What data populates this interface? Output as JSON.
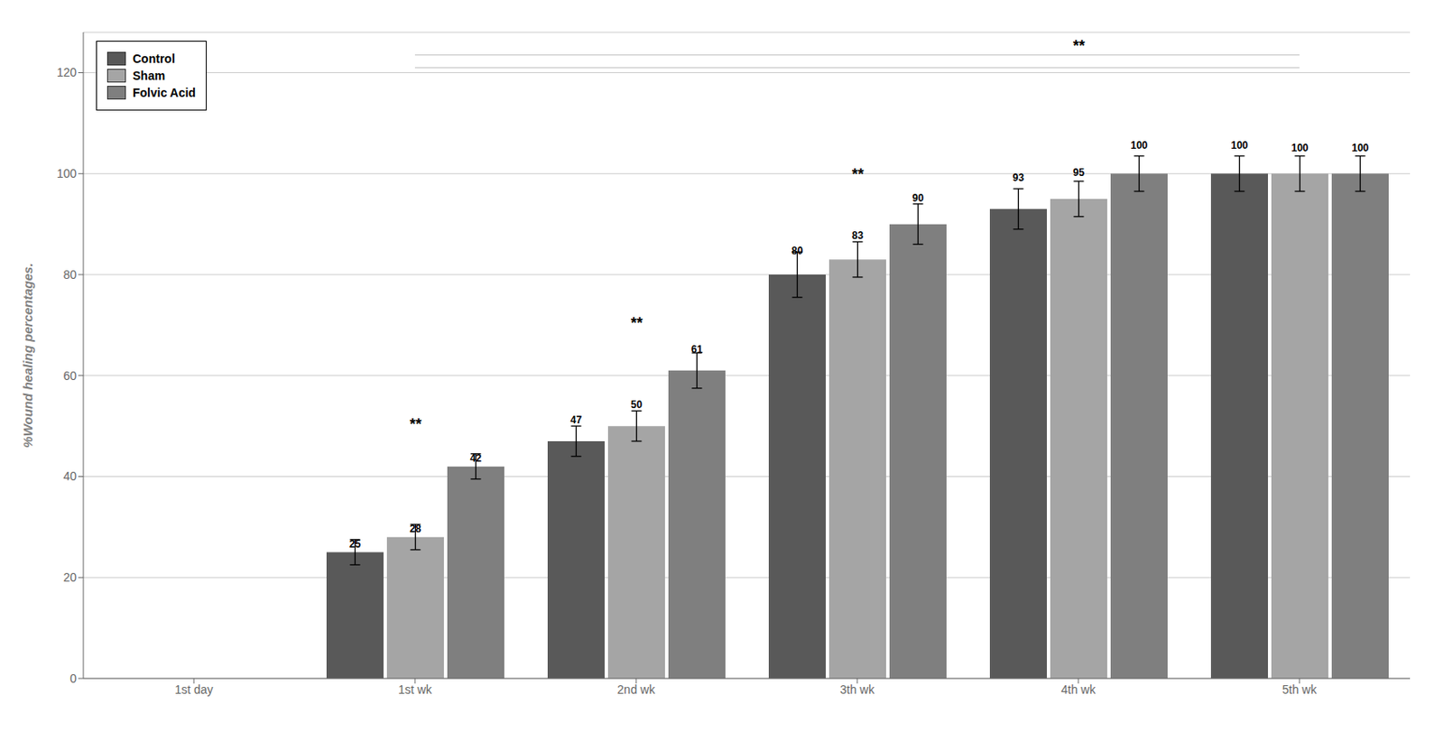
{
  "chart_data": {
    "type": "bar",
    "categories": [
      "1st day",
      "1st wk",
      "2nd wk",
      "3th wk",
      "4th wk",
      "5th wk"
    ],
    "series": [
      {
        "name": "Control",
        "color": "#595959",
        "values": [
          0,
          25,
          47,
          80,
          93,
          100
        ],
        "errors": [
          0,
          2.5,
          3.0,
          4.5,
          4.0,
          3.5
        ]
      },
      {
        "name": "Sham",
        "color": "#a5a5a5",
        "values": [
          0,
          28,
          50,
          83,
          95,
          100
        ],
        "errors": [
          0,
          2.5,
          3.0,
          3.5,
          3.5,
          3.5
        ]
      },
      {
        "name": "Folvic Acid",
        "color": "#7f7f7f",
        "values": [
          0,
          42,
          61,
          90,
          100,
          100
        ],
        "errors": [
          0,
          2.5,
          3.5,
          4.0,
          3.5,
          3.5
        ]
      }
    ],
    "ylabel": "%Wound healing percentages.",
    "ylim": [
      0,
      128
    ],
    "yticks": [
      0,
      20,
      40,
      60,
      80,
      100,
      120
    ],
    "grid": true,
    "legend": "upper left",
    "data_labels": true,
    "annotations": [
      {
        "text": "**",
        "category": "1st wk",
        "y": 49
      },
      {
        "text": "**",
        "category": "2nd wk",
        "y": 69
      },
      {
        "text": "**",
        "category": "3th wk",
        "y": 98.5
      },
      {
        "text": "**",
        "category": "4th wk",
        "y": 124
      }
    ],
    "reference_lines": [
      {
        "y": 123.5,
        "from": "1st wk",
        "to": "5th wk"
      },
      {
        "y": 121.0,
        "from": "1st wk",
        "to": "5th wk"
      }
    ]
  }
}
